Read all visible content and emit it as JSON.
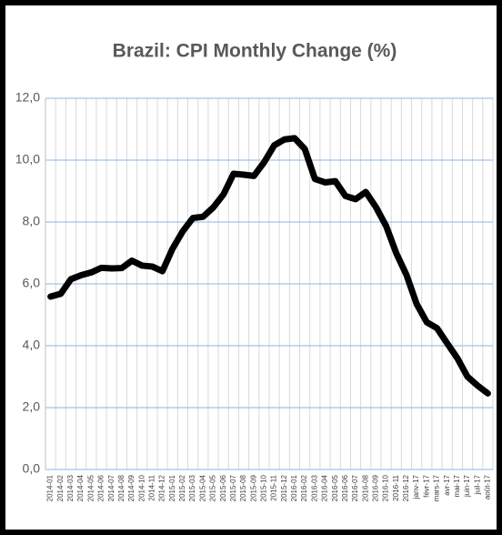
{
  "chart_data": {
    "type": "line",
    "title": "Brazil: CPI Monthly Change (%)",
    "categories": [
      "2014-01",
      "2014-02",
      "2014-03",
      "2014-04",
      "2014-05",
      "2014-06",
      "2014-07",
      "2014-08",
      "2014-09",
      "2014-10",
      "2014-11",
      "2014-12",
      "2015-01",
      "2015-02",
      "2015-03",
      "2015-04",
      "2015-05",
      "2015-06",
      "2015-07",
      "2015-08",
      "2015-09",
      "2015-10",
      "2015-11",
      "2015-12",
      "2016-01",
      "2016-02",
      "2016-03",
      "2016-04",
      "2016-05",
      "2016-06",
      "2016-07",
      "2016-08",
      "2016-09",
      "2016-10",
      "2016-11",
      "2016-12",
      "janv-17",
      "févr-17",
      "mars-17",
      "avr-17",
      "mai-17",
      "juin-17",
      "juil-17",
      "août-17"
    ],
    "values": [
      5.59,
      5.68,
      6.15,
      6.28,
      6.37,
      6.52,
      6.5,
      6.51,
      6.75,
      6.59,
      6.56,
      6.41,
      7.14,
      7.7,
      8.13,
      8.17,
      8.47,
      8.89,
      9.56,
      9.53,
      9.49,
      9.93,
      10.48,
      10.67,
      10.71,
      10.36,
      9.39,
      9.28,
      9.32,
      8.84,
      8.74,
      8.97,
      8.48,
      7.87,
      6.99,
      6.29,
      5.35,
      4.76,
      4.57,
      4.08,
      3.6,
      3.0,
      2.71,
      2.46
    ],
    "color": "#000000",
    "ylim": [
      0,
      12
    ],
    "yticks": [
      {
        "value": 0,
        "label": "0,0"
      },
      {
        "value": 2,
        "label": "2,0"
      },
      {
        "value": 4,
        "label": "4,0"
      },
      {
        "value": 6,
        "label": "6,0"
      },
      {
        "value": 8,
        "label": "8,0"
      },
      {
        "value": 10,
        "label": "10,0"
      },
      {
        "value": 12,
        "label": "12,0"
      }
    ],
    "grid": true
  }
}
